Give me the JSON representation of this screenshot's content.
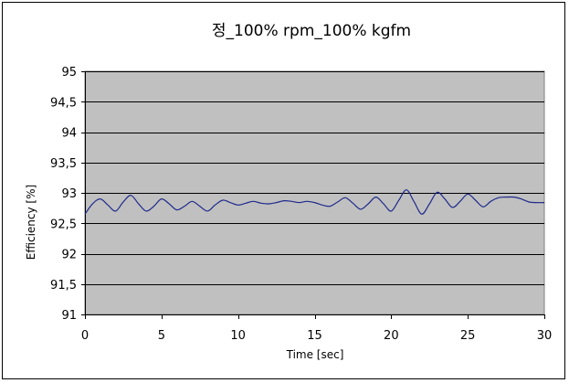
{
  "chart_data": {
    "type": "line",
    "title": "정_100% rpm_100% kgfm",
    "xlabel": "Time [sec]",
    "ylabel": "Efficiency [%]",
    "xlim": [
      0,
      30
    ],
    "ylim": [
      91,
      95
    ],
    "xticks": [
      0,
      5,
      10,
      15,
      20,
      25,
      30
    ],
    "xtick_labels": [
      "0",
      "5",
      "10",
      "15",
      "20",
      "25",
      "30"
    ],
    "yticks": [
      91,
      91.5,
      92,
      92.5,
      93,
      93.5,
      94,
      94.5,
      95
    ],
    "ytick_labels": [
      "91",
      "91,5",
      "92",
      "92,5",
      "93",
      "93,5",
      "94",
      "94,5",
      "95"
    ],
    "grid": "horizontal",
    "legend": "none",
    "plot_background": "#c0c0c0",
    "series": [
      {
        "color": "#1f2a8c",
        "x": [
          0,
          0.5,
          1,
          1.5,
          2,
          2.5,
          3,
          3.5,
          4,
          4.5,
          5,
          5.5,
          6,
          6.5,
          7,
          7.5,
          8,
          8.5,
          9,
          9.5,
          10,
          10.5,
          11,
          11.5,
          12,
          12.5,
          13,
          13.5,
          14,
          14.5,
          15,
          15.5,
          16,
          16.5,
          17,
          17.5,
          18,
          18.5,
          19,
          19.5,
          20,
          20.5,
          21,
          21.5,
          22,
          22.5,
          23,
          23.5,
          24,
          24.5,
          25,
          25.5,
          26,
          26.5,
          27,
          27.5,
          28,
          28.5,
          29,
          29.5,
          30
        ],
        "y": [
          92.65,
          92.82,
          92.9,
          92.8,
          92.7,
          92.85,
          92.96,
          92.82,
          92.7,
          92.78,
          92.9,
          92.82,
          92.72,
          92.78,
          92.86,
          92.78,
          92.7,
          92.8,
          92.88,
          92.84,
          92.8,
          92.83,
          92.86,
          92.83,
          92.82,
          92.84,
          92.87,
          92.86,
          92.84,
          92.86,
          92.84,
          92.8,
          92.78,
          92.85,
          92.92,
          92.83,
          92.73,
          92.82,
          92.93,
          92.82,
          92.7,
          92.88,
          93.05,
          92.85,
          92.65,
          92.82,
          93.01,
          92.9,
          92.76,
          92.86,
          92.98,
          92.88,
          92.77,
          92.86,
          92.92,
          92.93,
          92.93,
          92.9,
          92.85,
          92.84,
          92.84
        ]
      }
    ]
  }
}
